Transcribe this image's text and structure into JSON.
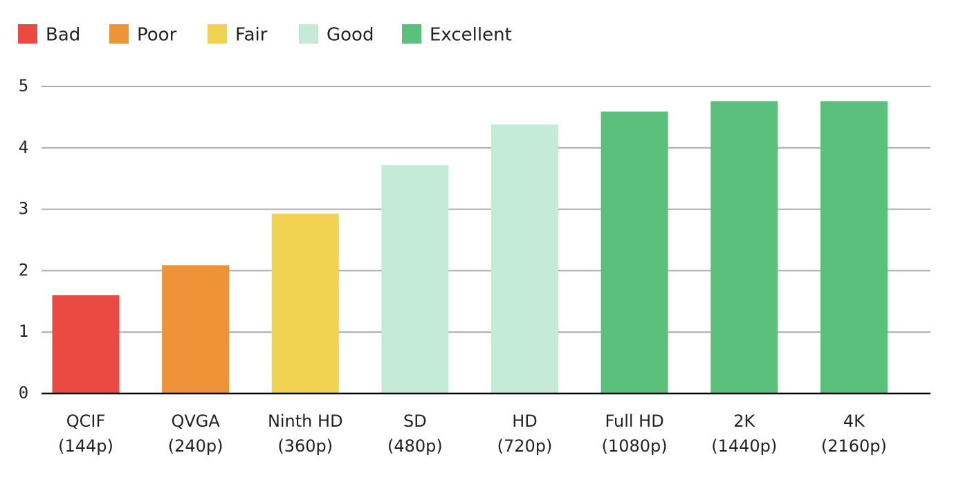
{
  "chart_data": {
    "type": "bar",
    "legend": [
      {
        "name": "Bad",
        "color": "#ea4a41"
      },
      {
        "name": "Poor",
        "color": "#ef9339"
      },
      {
        "name": "Fair",
        "color": "#f1d351"
      },
      {
        "name": "Good",
        "color": "#c4ebd8"
      },
      {
        "name": "Excellent",
        "color": "#5bc07b"
      }
    ],
    "categories": [
      [
        "QCIF",
        "(144p)"
      ],
      [
        "QVGA",
        "(240p)"
      ],
      [
        "Ninth HD",
        "(360p)"
      ],
      [
        "SD",
        "(480p)"
      ],
      [
        "HD",
        "(720p)"
      ],
      [
        "Full HD",
        "(1080p)"
      ],
      [
        "2K",
        "(1440p)"
      ],
      [
        "4K",
        "(2160p)"
      ]
    ],
    "values": [
      1.6,
      2.09,
      2.93,
      3.72,
      4.38,
      4.59,
      4.76,
      4.76
    ],
    "colors": [
      "#ea4a41",
      "#ef9339",
      "#f1d351",
      "#c4ebd8",
      "#c4ebd8",
      "#5bc07b",
      "#5bc07b",
      "#5bc07b"
    ],
    "ylim": [
      0,
      5
    ],
    "yticks": [
      0,
      1,
      2,
      3,
      4,
      5
    ],
    "grid": true
  }
}
